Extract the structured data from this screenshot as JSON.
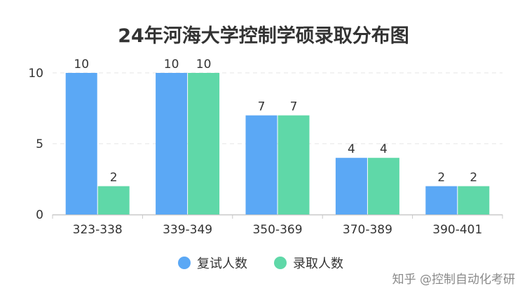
{
  "chart_data": {
    "type": "bar",
    "title": "24年河海大学控制学硕录取分布图",
    "categories": [
      "323-338",
      "339-349",
      "350-369",
      "370-389",
      "390-401"
    ],
    "series": [
      {
        "name": "复试人数",
        "values": [
          10,
          10,
          7,
          4,
          2
        ],
        "color": "#5BA8F5"
      },
      {
        "name": "录取人数",
        "values": [
          2,
          10,
          7,
          4,
          2
        ],
        "color": "#5FD8A8"
      }
    ],
    "xlabel": "",
    "ylabel": "",
    "ylim": [
      0,
      10
    ],
    "yticks": [
      0,
      5,
      10
    ],
    "grid": true,
    "legend_position": "bottom-center",
    "data_labels": true
  },
  "watermark": "知乎 @控制自动化考研"
}
